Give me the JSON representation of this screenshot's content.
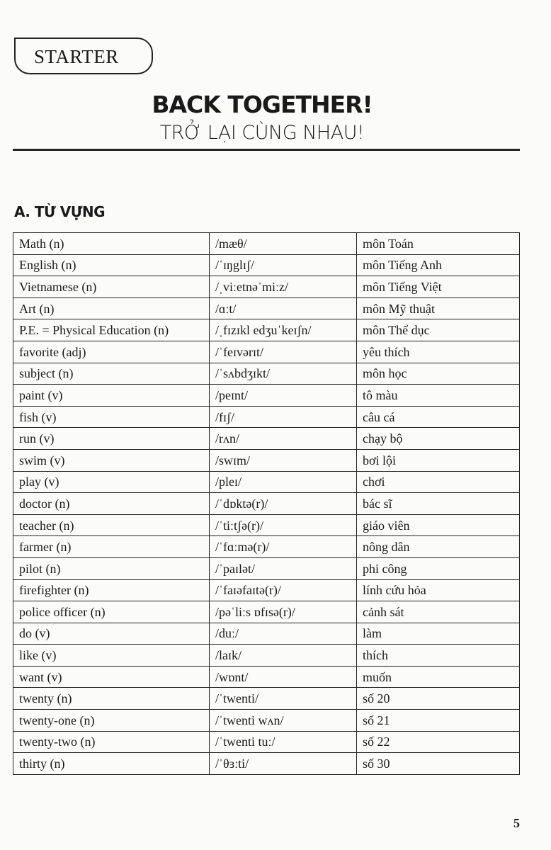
{
  "header": {
    "badge": "STARTER",
    "title": "BACK TOGETHER!",
    "subtitle": "TRỞ LẠI CÙNG NHAU!"
  },
  "section": "A. TỪ VỰNG",
  "rows": [
    [
      "Math (n)",
      "/mæθ/",
      "môn Toán"
    ],
    [
      "English (n)",
      "/ˈɪŋglɪʃ/",
      "môn Tiếng Anh"
    ],
    [
      "Vietnamese (n)",
      "/ˌviːetnəˈmiːz/",
      "môn Tiếng Việt"
    ],
    [
      "Art (n)",
      "/ɑːt/",
      "môn Mỹ thuật"
    ],
    [
      "P.E. = Physical Education (n)",
      "/ˌfɪzɪkl edʒuˈkeɪʃn/",
      "môn Thể dục"
    ],
    [
      "favorite (adj)",
      "/ˈfeɪvərɪt/",
      "yêu thích"
    ],
    [
      "subject (n)",
      "/ˈsʌbdʒɪkt/",
      "môn học"
    ],
    [
      "paint (v)",
      "/peɪnt/",
      "tô màu"
    ],
    [
      "fish (v)",
      "/fɪʃ/",
      "câu cá"
    ],
    [
      "run (v)",
      "/rʌn/",
      "chạy bộ"
    ],
    [
      "swim (v)",
      "/swɪm/",
      "bơi lội"
    ],
    [
      "play (v)",
      "/pleɪ/",
      "chơi"
    ],
    [
      "doctor (n)",
      "/ˈdɒktə(r)/",
      "bác sĩ"
    ],
    [
      "teacher (n)",
      "/ˈtiːtʃə(r)/",
      "giáo viên"
    ],
    [
      "farmer (n)",
      "/ˈfɑːmə(r)/",
      "nông dân"
    ],
    [
      "pilot (n)",
      "/ˈpaɪlət/",
      "phi công"
    ],
    [
      "firefighter (n)",
      "/ˈfaɪəfaɪtə(r)/",
      "lính cứu hỏa"
    ],
    [
      "police officer (n)",
      "/pəˈliːs ɒfɪsə(r)/",
      "cảnh sát"
    ],
    [
      "do (v)",
      "/duː/",
      "làm"
    ],
    [
      "like (v)",
      "/laɪk/",
      "thích"
    ],
    [
      "want (v)",
      "/wɒnt/",
      "muốn"
    ],
    [
      "twenty (n)",
      "/ˈtwenti/",
      "số 20"
    ],
    [
      "twenty-one (n)",
      "/ˈtwenti wʌn/",
      "số 21"
    ],
    [
      "twenty-two (n)",
      "/ˈtwenti tuː/",
      "số 22"
    ],
    [
      "thirty (n)",
      "/ˈθɜːti/",
      "số 30"
    ]
  ],
  "page_number": "5"
}
